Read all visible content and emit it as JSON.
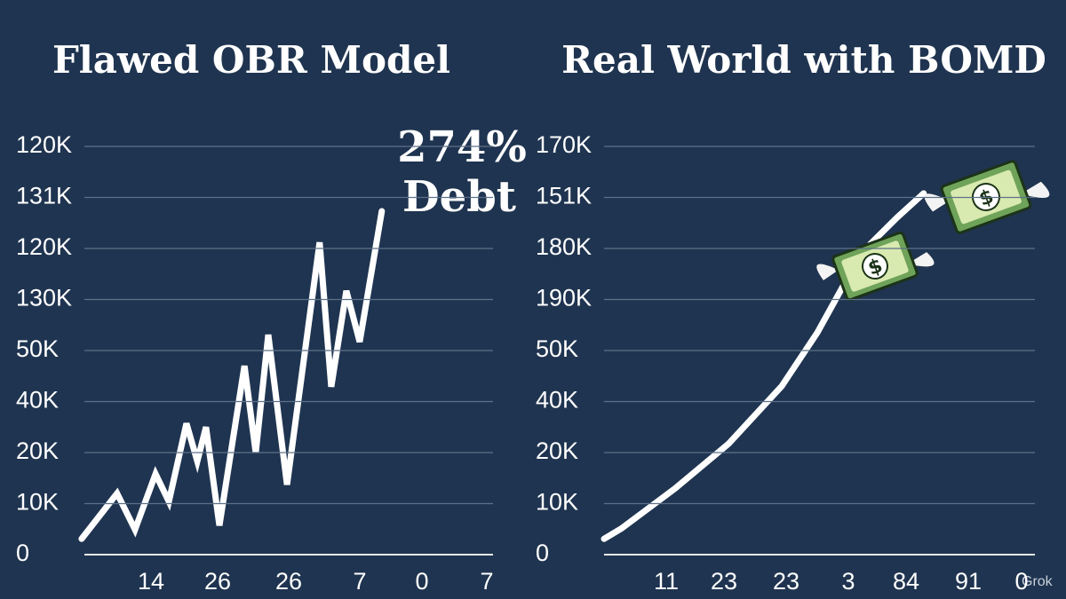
{
  "chart_data": [
    {
      "type": "line",
      "title": "Flawed OBR Model",
      "annotations": [
        "274%",
        "Debt"
      ],
      "ylabels": [
        "0",
        "10K",
        "20K",
        "40K",
        "50K",
        "130K",
        "120K",
        "131K",
        "120K"
      ],
      "yticks": [
        0,
        1,
        2,
        3,
        4,
        5,
        6,
        7,
        8
      ],
      "ylim": [
        0,
        8.2
      ],
      "xlabels": [
        "14",
        "26",
        "26",
        "7",
        "0",
        "7"
      ],
      "xlim": [
        0,
        100
      ],
      "x": [
        0.4,
        8.9,
        13.2,
        18.1,
        21.3,
        25.5,
        28.1,
        30.2,
        33.4,
        39.4,
        42.1,
        45.1,
        49.6,
        57.4,
        60.2,
        63.8,
        67,
        72.3
      ],
      "values": [
        0.31,
        1.2,
        0.49,
        1.58,
        1.04,
        2.57,
        1.83,
        2.5,
        0.57,
        3.7,
        2.0,
        4.31,
        1.37,
        6.12,
        3.29,
        5.17,
        4.17,
        6.73
      ],
      "color": "#ffffff",
      "grid": true
    },
    {
      "type": "line",
      "title": "Real World with BOMD",
      "watermark": "Grok",
      "ylabels": [
        "0",
        "10K",
        "20K",
        "40K",
        "50K",
        "190K",
        "180K",
        "151K",
        "170K"
      ],
      "yticks": [
        0,
        1,
        2,
        3,
        4,
        5,
        6,
        7,
        8
      ],
      "ylim": [
        0,
        8.2
      ],
      "xlabels": [
        "11",
        "23",
        "23",
        "3",
        "84",
        "91",
        "0"
      ],
      "xlim": [
        0,
        100
      ],
      "x": [
        1,
        5.1,
        17.2,
        29.3,
        41.4,
        49.5,
        55.6,
        61.6,
        67.7,
        73.7
      ],
      "values": [
        0.31,
        0.52,
        1.3,
        2.17,
        3.3,
        4.35,
        5.3,
        6.09,
        6.61,
        7.08
      ],
      "color": "#ffffff",
      "grid": true
    }
  ]
}
